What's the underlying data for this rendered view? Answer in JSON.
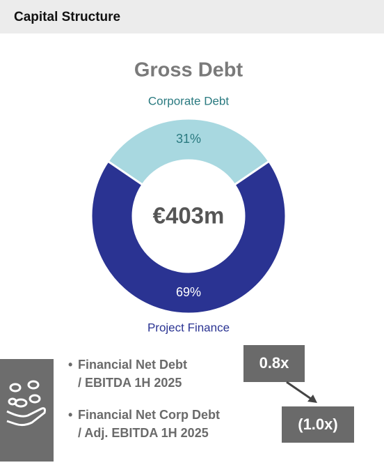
{
  "header": {
    "title": "Capital Structure"
  },
  "chart_data": {
    "type": "donut",
    "title": "Gross Debt",
    "categories": [
      "Corporate Debt",
      "Project Finance"
    ],
    "values": [
      31,
      69
    ],
    "value_labels": [
      "31%",
      "69%"
    ],
    "colors": [
      "#a8d8e0",
      "#2a3392"
    ],
    "center_label": "€403m"
  },
  "metrics": [
    {
      "label_lines": [
        "Financial Net Debt",
        "/ EBITDA 1H 2025"
      ],
      "value": "0.8x"
    },
    {
      "label_lines": [
        "Financial Net Corp Debt",
        "/ Adj. EBITDA 1H 2025"
      ],
      "value": "(1.0x)"
    }
  ]
}
